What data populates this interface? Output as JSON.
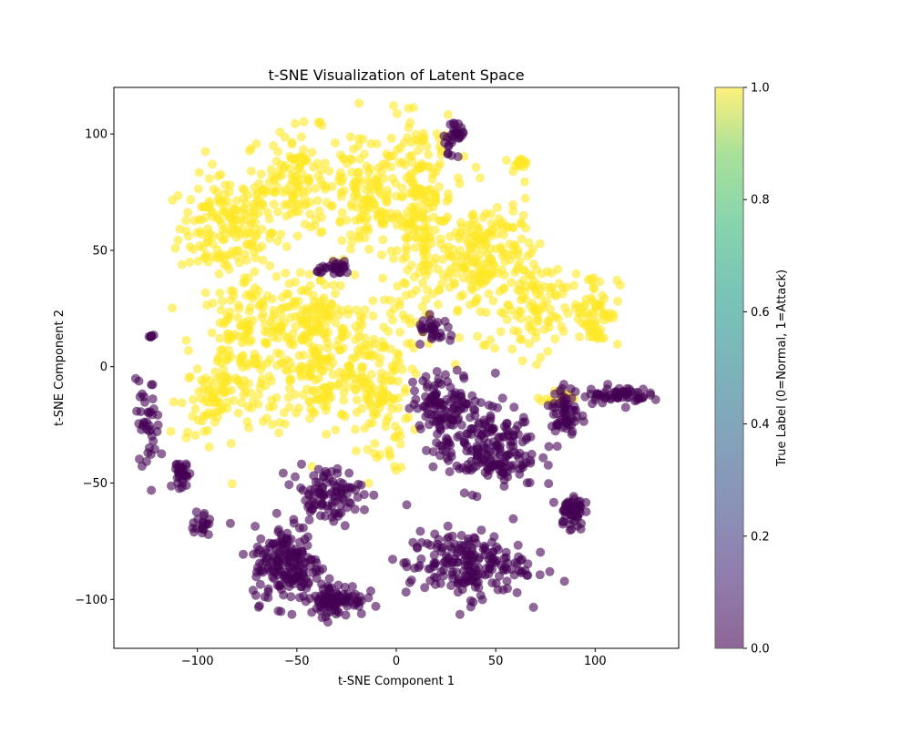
{
  "chart_data": {
    "type": "scatter",
    "title": "t-SNE Visualization of Latent Space",
    "xlabel": "t-SNE Component 1",
    "ylabel": "t-SNE Component 2",
    "xlim": [
      -142,
      142
    ],
    "ylim": [
      -121,
      120
    ],
    "xticks": [
      -100,
      -50,
      0,
      50,
      100
    ],
    "xtick_labels": [
      "−100",
      "−50",
      "0",
      "50",
      "100"
    ],
    "yticks": [
      -100,
      -50,
      0,
      50,
      100
    ],
    "ytick_labels": [
      "−100",
      "−50",
      "0",
      "50",
      "100"
    ],
    "colorbar": {
      "label": "True Label (0=Normal, 1=Attack)",
      "range": [
        0,
        1
      ],
      "ticks": [
        0.0,
        0.2,
        0.4,
        0.6,
        0.8,
        1.0
      ],
      "tick_labels": [
        "0.0",
        "0.2",
        "0.4",
        "0.6",
        "0.8",
        "1.0"
      ],
      "colormap": "viridis"
    },
    "colors": {
      "normal": "#440154",
      "attack": "#fde725"
    },
    "series": [
      {
        "label_value": 1,
        "clusters": [
          {
            "center": [
              -85,
              60
            ],
            "spread": [
              20,
              18
            ],
            "count": 160
          },
          {
            "center": [
              -50,
              80
            ],
            "spread": [
              22,
              18
            ],
            "count": 150
          },
          {
            "center": [
              -15,
              70
            ],
            "spread": [
              14,
              22
            ],
            "count": 110
          },
          {
            "center": [
              -75,
              10
            ],
            "spread": [
              22,
              25
            ],
            "count": 160
          },
          {
            "center": [
              -40,
              0
            ],
            "spread": [
              22,
              25
            ],
            "count": 180
          },
          {
            "center": [
              -10,
              -10
            ],
            "spread": [
              14,
              30
            ],
            "count": 140
          },
          {
            "center": [
              12,
              65
            ],
            "spread": [
              14,
              35
            ],
            "count": 220
          },
          {
            "center": [
              45,
              45
            ],
            "spread": [
              20,
              25
            ],
            "count": 200
          },
          {
            "center": [
              70,
              25
            ],
            "spread": [
              12,
              18
            ],
            "count": 80
          },
          {
            "center": [
              100,
              25
            ],
            "spread": [
              10,
              14
            ],
            "count": 70
          },
          {
            "center": [
              -95,
              -15
            ],
            "spread": [
              12,
              14
            ],
            "count": 60
          },
          {
            "center": [
              62,
              87
            ],
            "spread": [
              3,
              2
            ],
            "count": 15
          },
          {
            "center": [
              80,
              -13
            ],
            "spread": [
              6,
              3
            ],
            "count": 12
          },
          {
            "center": [
              -45,
              25
            ],
            "spread": [
              20,
              12
            ],
            "count": 80
          }
        ]
      },
      {
        "label_value": 0,
        "clusters": [
          {
            "center": [
              -55,
              -85
            ],
            "spread": [
              14,
              14
            ],
            "count": 180
          },
          {
            "center": [
              -30,
              -100
            ],
            "spread": [
              12,
              6
            ],
            "count": 90
          },
          {
            "center": [
              -35,
              -55
            ],
            "spread": [
              15,
              10
            ],
            "count": 100
          },
          {
            "center": [
              35,
              -85
            ],
            "spread": [
              25,
              12
            ],
            "count": 200
          },
          {
            "center": [
              45,
              -35
            ],
            "spread": [
              22,
              15
            ],
            "count": 200
          },
          {
            "center": [
              25,
              -15
            ],
            "spread": [
              14,
              10
            ],
            "count": 100
          },
          {
            "center": [
              110,
              -12
            ],
            "spread": [
              14,
              3
            ],
            "count": 60
          },
          {
            "center": [
              88,
              -62
            ],
            "spread": [
              5,
              7
            ],
            "count": 50
          },
          {
            "center": [
              85,
              -20
            ],
            "spread": [
              6,
              10
            ],
            "count": 60
          },
          {
            "center": [
              -125,
              -25
            ],
            "spread": [
              5,
              15
            ],
            "count": 40
          },
          {
            "center": [
              -108,
              -47
            ],
            "spread": [
              3,
              8
            ],
            "count": 30
          },
          {
            "center": [
              -98,
              -68
            ],
            "spread": [
              4,
              5
            ],
            "count": 20
          },
          {
            "center": [
              30,
              100
            ],
            "spread": [
              5,
              6
            ],
            "count": 30
          },
          {
            "center": [
              -30,
              42
            ],
            "spread": [
              8,
              2
            ],
            "count": 30
          },
          {
            "center": [
              20,
              15
            ],
            "spread": [
              8,
              5
            ],
            "count": 30
          },
          {
            "center": [
              -123,
              13
            ],
            "spread": [
              2,
              1
            ],
            "count": 6
          }
        ]
      }
    ]
  }
}
